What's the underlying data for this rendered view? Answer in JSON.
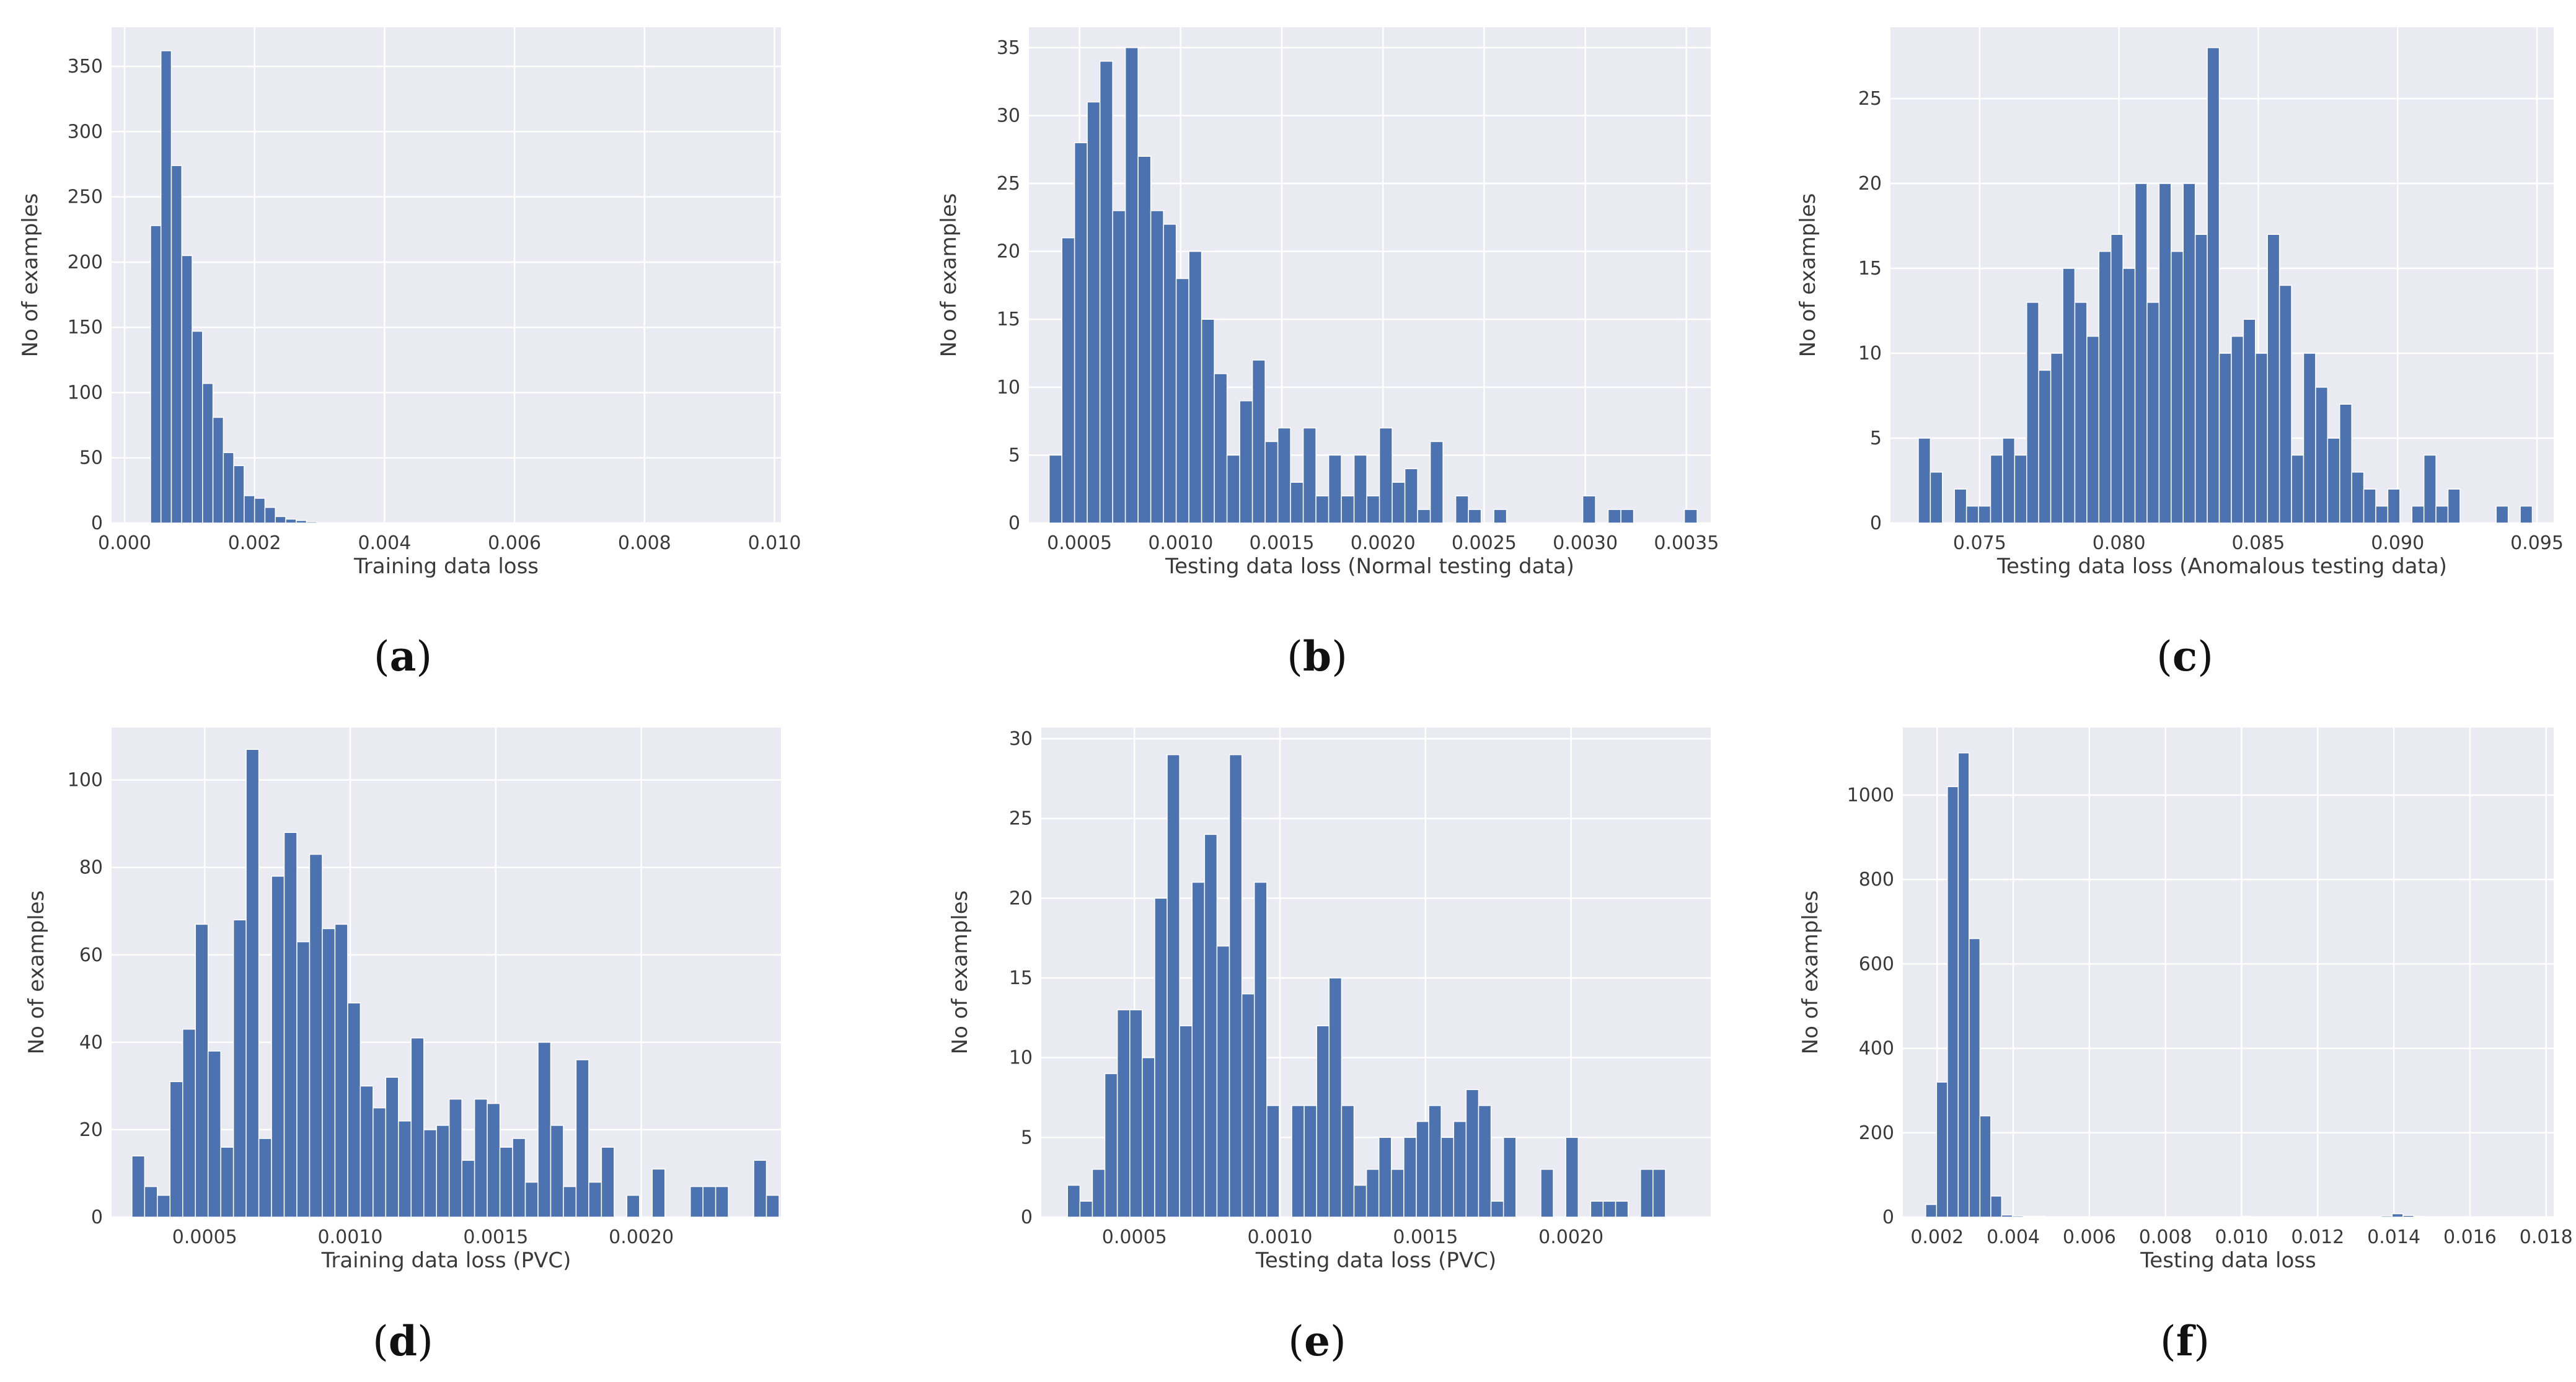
{
  "colors": {
    "bar": "#4c72b0",
    "bar_edge": "#3d5f97",
    "plot_bg": "#eaeaf2",
    "grid": "#ffffff"
  },
  "chart_data": [
    {
      "id": "a",
      "caption": "a",
      "type": "bar",
      "xlabel": "Training data loss",
      "ylabel": "No of examples",
      "xlim": [
        -0.0002,
        0.0101
      ],
      "ylim": [
        0,
        380
      ],
      "xticks": [
        0.0,
        0.002,
        0.004,
        0.006,
        0.008,
        0.01
      ],
      "xtick_labels": [
        "0.000",
        "0.002",
        "0.004",
        "0.006",
        "0.008",
        "0.010"
      ],
      "yticks": [
        0,
        50,
        100,
        150,
        200,
        250,
        300,
        350
      ],
      "ytick_labels": [
        "0",
        "50",
        "100",
        "150",
        "200",
        "250",
        "300",
        "350"
      ],
      "bin_start": 0.0004,
      "bin_width": 0.00016,
      "values": [
        228,
        362,
        274,
        205,
        147,
        107,
        81,
        54,
        44,
        21,
        19,
        12,
        5,
        3,
        2,
        1
      ]
    },
    {
      "id": "b",
      "caption": "b",
      "type": "bar",
      "xlabel": "Testing data loss (Normal testing data)",
      "ylabel": "No of examples",
      "xlim": [
        0.00025,
        0.00362
      ],
      "ylim": [
        0,
        36.5
      ],
      "xticks": [
        0.0005,
        0.001,
        0.0015,
        0.002,
        0.0025,
        0.003,
        0.0035
      ],
      "xtick_labels": [
        "0.0005",
        "0.0010",
        "0.0015",
        "0.0020",
        "0.0025",
        "0.0030",
        "0.0035"
      ],
      "yticks": [
        0,
        5,
        10,
        15,
        20,
        25,
        30,
        35
      ],
      "ytick_labels": [
        "0",
        "5",
        "10",
        "15",
        "20",
        "25",
        "30",
        "35"
      ],
      "bin_start": 0.00035,
      "bin_width": 6.28e-05,
      "values": [
        5,
        21,
        28,
        31,
        34,
        23,
        35,
        27,
        23,
        22,
        18,
        20,
        15,
        11,
        5,
        9,
        12,
        6,
        7,
        3,
        7,
        2,
        5,
        2,
        5,
        2,
        7,
        3,
        4,
        1,
        6,
        0,
        2,
        1,
        0,
        1,
        0,
        0,
        0,
        0,
        0,
        0,
        2,
        0,
        1,
        1,
        0,
        0,
        0,
        0,
        1
      ]
    },
    {
      "id": "c",
      "caption": "c",
      "type": "bar",
      "xlabel": "Testing data loss (Anomalous testing data)",
      "ylabel": "No of examples",
      "xlim": [
        0.0718,
        0.0956
      ],
      "ylim": [
        0,
        29.2
      ],
      "xticks": [
        0.075,
        0.08,
        0.085,
        0.09,
        0.095
      ],
      "xtick_labels": [
        "0.075",
        "0.080",
        "0.085",
        "0.090",
        "0.095"
      ],
      "yticks": [
        0,
        5,
        10,
        15,
        20,
        25
      ],
      "ytick_labels": [
        "0",
        "5",
        "10",
        "15",
        "20",
        "25"
      ],
      "bin_start": 0.0728,
      "bin_width": 0.000432,
      "values": [
        5,
        3,
        0,
        2,
        1,
        1,
        4,
        5,
        4,
        13,
        9,
        10,
        15,
        13,
        11,
        16,
        17,
        15,
        20,
        13,
        20,
        16,
        20,
        17,
        28,
        10,
        11,
        12,
        10,
        17,
        14,
        4,
        10,
        8,
        5,
        7,
        3,
        2,
        1,
        2,
        0,
        1,
        4,
        1,
        2,
        0,
        0,
        0,
        1,
        0,
        1
      ]
    },
    {
      "id": "d",
      "caption": "d",
      "type": "bar",
      "xlabel": "Training data loss (PVC)",
      "ylabel": "No of examples",
      "xlim": [
        0.00018,
        0.00248
      ],
      "ylim": [
        0,
        112
      ],
      "xticks": [
        0.0005,
        0.001,
        0.0015,
        0.002
      ],
      "xtick_labels": [
        "0.0005",
        "0.0010",
        "0.0015",
        "0.0020"
      ],
      "yticks": [
        0,
        20,
        40,
        60,
        80,
        100
      ],
      "ytick_labels": [
        "0",
        "20",
        "40",
        "60",
        "80",
        "100"
      ],
      "bin_start": 0.00025,
      "bin_width": 4.36e-05,
      "values": [
        14,
        7,
        5,
        31,
        43,
        67,
        38,
        16,
        68,
        107,
        18,
        78,
        88,
        63,
        83,
        66,
        67,
        49,
        30,
        25,
        32,
        22,
        41,
        20,
        21,
        27,
        13,
        27,
        26,
        16,
        18,
        8,
        40,
        21,
        7,
        36,
        8,
        16,
        0,
        5,
        0,
        11,
        0,
        0,
        7,
        7,
        7,
        0,
        0,
        13,
        5
      ]
    },
    {
      "id": "e",
      "caption": "e",
      "type": "bar",
      "xlabel": "Testing data loss (PVC)",
      "ylabel": "No of examples",
      "xlim": [
        0.00018,
        0.00248
      ],
      "ylim": [
        0,
        30.7
      ],
      "xticks": [
        0.0005,
        0.001,
        0.0015,
        0.002
      ],
      "xtick_labels": [
        "0.0005",
        "0.0010",
        "0.0015",
        "0.0020"
      ],
      "yticks": [
        0,
        5,
        10,
        15,
        20,
        25,
        30
      ],
      "ytick_labels": [
        "0",
        "5",
        "10",
        "15",
        "20",
        "25",
        "30"
      ],
      "bin_start": 0.00027,
      "bin_width": 4.28e-05,
      "values": [
        2,
        1,
        3,
        9,
        13,
        13,
        10,
        20,
        29,
        12,
        21,
        24,
        17,
        29,
        14,
        21,
        7,
        0,
        7,
        7,
        12,
        15,
        7,
        2,
        3,
        5,
        3,
        5,
        6,
        7,
        5,
        6,
        8,
        7,
        1,
        5,
        0,
        0,
        3,
        0,
        5,
        0,
        1,
        1,
        1,
        0,
        3,
        3
      ]
    },
    {
      "id": "f",
      "caption": "f",
      "type": "bar",
      "xlabel": "Testing data loss",
      "ylabel": "No of examples",
      "xlim": [
        0.0011,
        0.0182
      ],
      "ylim": [
        0,
        1160
      ],
      "xticks": [
        0.002,
        0.004,
        0.006,
        0.008,
        0.01,
        0.012,
        0.014,
        0.016,
        0.018
      ],
      "xtick_labels": [
        "0.002",
        "0.004",
        "0.006",
        "0.008",
        "0.010",
        "0.012",
        "0.014",
        "0.016",
        "0.018"
      ],
      "yticks": [
        0,
        200,
        400,
        600,
        800,
        1000
      ],
      "ytick_labels": [
        "0",
        "200",
        "400",
        "600",
        "800",
        "1000"
      ],
      "bin_start": 0.0017,
      "bin_width": 0.000285,
      "values": [
        30,
        320,
        1020,
        1100,
        660,
        240,
        50,
        5,
        3,
        2,
        2,
        1,
        1,
        1,
        1,
        1,
        1,
        1,
        1,
        1,
        1,
        1,
        1,
        1,
        1,
        1,
        1,
        1,
        1,
        2,
        1,
        1,
        1,
        1,
        1,
        1,
        1,
        1,
        1,
        1,
        1,
        1,
        3,
        8,
        4,
        2,
        1,
        1,
        1,
        1,
        1,
        1,
        1,
        1,
        1,
        1,
        1,
        1
      ]
    }
  ]
}
